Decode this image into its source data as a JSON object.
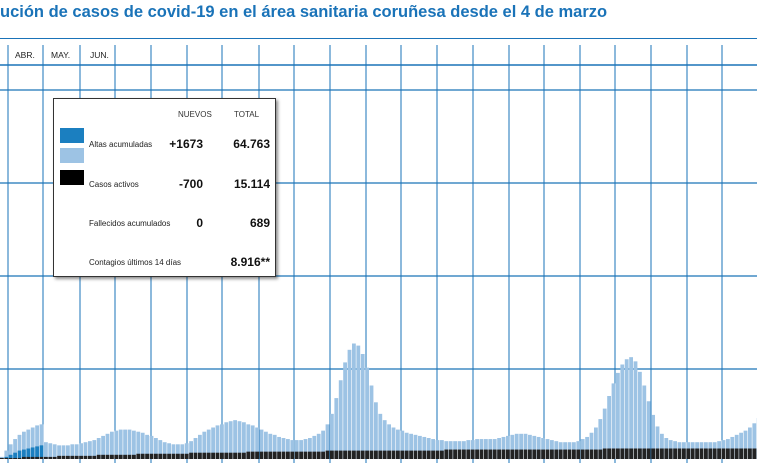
{
  "title": "ución de casos de covid-19 en el área sanitaria coruñesa desde el 4 de marzo",
  "months": [
    "ABR.",
    "MAY.",
    "JUN."
  ],
  "legend": {
    "header_new": "NUEVOS",
    "header_total": "TOTAL",
    "rows": [
      {
        "label": "Altas acumuladas",
        "new": "+1673",
        "total": "64.763"
      },
      {
        "label": "Casos activos",
        "new": "-700",
        "total": "15.114"
      },
      {
        "label": "Fallecidos acumulados",
        "new": "0",
        "total": "689"
      },
      {
        "label": "Contagios últimos 14 días",
        "new": "",
        "total": "8.916**"
      }
    ],
    "colors": {
      "altas_dark": "#1b7fc0",
      "altas_light": "#9dc3e4",
      "activos": "#000000"
    }
  },
  "chart_data": {
    "type": "area",
    "title": "ución de casos de covid-19 en el área sanitaria coruñesa desde el 4 de marzo",
    "xlabel": "",
    "ylabel": "",
    "x_tick_labels": [
      "ABR.",
      "MAY.",
      "JUN."
    ],
    "grid": true,
    "legend_position": "top-left",
    "series": [
      {
        "color": "#9dc3e4",
        "values": [
          2,
          8,
          14,
          19,
          23,
          26,
          28,
          30,
          32,
          33,
          16,
          15,
          14,
          13,
          13,
          13,
          14,
          14,
          15,
          16,
          17,
          18,
          20,
          22,
          24,
          26,
          27,
          28,
          28,
          28,
          27,
          26,
          25,
          23,
          22,
          20,
          18,
          16,
          15,
          14,
          14,
          14,
          15,
          17,
          20,
          23,
          26,
          28,
          30,
          32,
          33,
          35,
          36,
          37,
          36,
          35,
          33,
          32,
          30,
          28,
          26,
          24,
          23,
          21,
          20,
          19,
          18,
          18,
          18,
          19,
          20,
          22,
          24,
          27,
          33,
          43,
          58,
          75,
          92,
          104,
          110,
          108,
          100,
          87,
          70,
          54,
          43,
          37,
          33,
          30,
          28,
          27,
          25,
          24,
          23,
          22,
          21,
          20,
          19,
          18,
          18,
          17,
          17,
          17,
          17,
          17,
          18,
          18,
          19,
          19,
          19,
          19,
          19,
          20,
          21,
          22,
          23,
          24,
          24,
          24,
          23,
          22,
          21,
          20,
          19,
          18,
          17,
          16,
          16,
          16,
          16,
          17,
          19,
          21,
          25,
          30,
          38,
          48,
          60,
          72,
          82,
          90,
          95,
          97,
          93,
          83,
          70,
          55,
          42,
          31,
          24,
          20,
          18,
          17,
          16,
          16,
          16,
          16,
          16,
          16,
          16,
          16,
          16,
          17,
          18,
          19,
          21,
          23,
          25,
          27,
          30,
          34,
          39,
          45,
          55,
          70,
          95,
          140
        ]
      },
      {
        "color": "#1b7fc0",
        "values": [
          0,
          2,
          4,
          6,
          8,
          9,
          10,
          11,
          12,
          13,
          0,
          0,
          0,
          0,
          0,
          0,
          0,
          0,
          0,
          0,
          0,
          0,
          0,
          0,
          0,
          0,
          0,
          0,
          0,
          0,
          0,
          0,
          0,
          0,
          0,
          0,
          0,
          0,
          0,
          0,
          0,
          0,
          0,
          0,
          0,
          0,
          0,
          0,
          0,
          0,
          0,
          0,
          0,
          0,
          0,
          0,
          0,
          0,
          0,
          0,
          0,
          0,
          0,
          0,
          0,
          0,
          0,
          0,
          0,
          0,
          0,
          0,
          0,
          0,
          0,
          0,
          0,
          0,
          0,
          0,
          0,
          0,
          0,
          0,
          0,
          0,
          0,
          0,
          0,
          0,
          0,
          0,
          0,
          0,
          0,
          0,
          0,
          0,
          0,
          0,
          0,
          0,
          0,
          0,
          0,
          0,
          0,
          0,
          0,
          0,
          0,
          0,
          0,
          0,
          0,
          0,
          0,
          0,
          0,
          0,
          0,
          0,
          0,
          0,
          0,
          0,
          0,
          0,
          0,
          0,
          0,
          0,
          0,
          0,
          0,
          0,
          0,
          0,
          0,
          0,
          0,
          0,
          0,
          0,
          0,
          0,
          0,
          0,
          0,
          0,
          0,
          0,
          0,
          0,
          0,
          0,
          0,
          0,
          0,
          0,
          0,
          0,
          0,
          0,
          0,
          0,
          0,
          0,
          0,
          0,
          0,
          0,
          0,
          0,
          0,
          0,
          0,
          0
        ]
      },
      {
        "color": "#222222",
        "values": [
          1,
          1,
          1,
          1,
          1,
          2,
          2,
          2,
          2,
          2,
          2,
          2,
          2,
          3,
          3,
          3,
          3,
          3,
          3,
          3,
          3,
          3,
          4,
          4,
          4,
          4,
          4,
          4,
          4,
          4,
          4,
          5,
          5,
          5,
          5,
          5,
          5,
          5,
          5,
          5,
          5,
          5,
          5,
          6,
          6,
          6,
          6,
          6,
          6,
          6,
          6,
          6,
          6,
          6,
          6,
          6,
          7,
          7,
          7,
          7,
          7,
          7,
          7,
          7,
          7,
          7,
          7,
          7,
          7,
          7,
          7,
          7,
          7,
          7,
          8,
          8,
          8,
          8,
          8,
          8,
          8,
          8,
          8,
          8,
          8,
          8,
          8,
          8,
          8,
          8,
          8,
          8,
          8,
          8,
          8,
          8,
          8,
          8,
          8,
          8,
          8,
          9,
          9,
          9,
          9,
          9,
          9,
          9,
          9,
          9,
          9,
          9,
          9,
          9,
          9,
          9,
          9,
          9,
          9,
          9,
          9,
          9,
          9,
          9,
          9,
          9,
          9,
          9,
          9,
          9,
          9,
          9,
          9,
          9,
          9,
          9,
          9,
          10,
          10,
          10,
          10,
          10,
          10,
          10,
          10,
          10,
          10,
          10,
          10,
          10,
          10,
          10,
          10,
          10,
          10,
          10,
          10,
          10,
          10,
          10,
          10,
          10,
          10,
          10,
          10,
          10,
          10,
          10,
          10,
          10,
          10,
          10,
          10,
          10,
          10,
          10,
          10,
          10
        ]
      }
    ]
  }
}
